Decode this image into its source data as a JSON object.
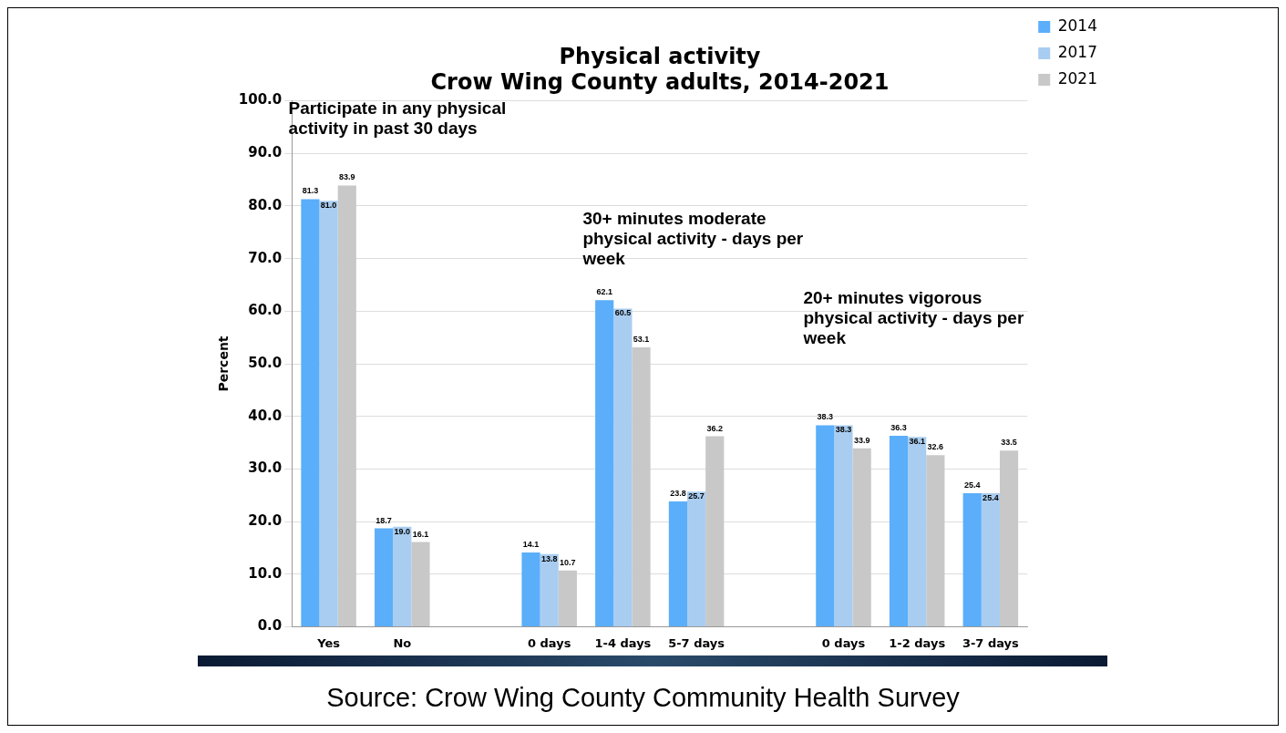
{
  "chart_data": {
    "type": "bar",
    "title": "Physical activity\nCrow Wing County adults, 2014-2021",
    "ylabel": "Percent",
    "categories": [
      "Yes",
      "No",
      null,
      "0 days",
      "1-4 days",
      "5-7 days",
      null,
      "0 days",
      "1-2 days",
      "3-7 days"
    ],
    "series": [
      {
        "name": "2014",
        "color": "#5aaefa",
        "values": [
          81.3,
          18.7,
          null,
          14.1,
          62.1,
          23.8,
          null,
          38.3,
          36.3,
          25.4
        ],
        "value_labels": [
          "81.3",
          "18.7",
          null,
          "14.1",
          "62.1",
          "23.8",
          null,
          "38.3",
          "36.3",
          "25.4"
        ]
      },
      {
        "name": "2017",
        "color": "#a9cdf0",
        "values": [
          81.0,
          19.0,
          null,
          13.8,
          60.5,
          25.7,
          null,
          38.3,
          36.1,
          25.4
        ],
        "value_labels": [
          "81.0",
          "19.0",
          null,
          "13.8",
          "60.5",
          "25.7",
          null,
          "38.3",
          "36.1",
          "25.4"
        ]
      },
      {
        "name": "2021",
        "color": "#c8c8c8",
        "values": [
          83.9,
          16.1,
          null,
          10.7,
          53.1,
          36.2,
          null,
          33.9,
          32.6,
          33.5
        ],
        "value_labels": [
          "83.9",
          "16.1",
          null,
          "10.7",
          "53.1",
          "36.2",
          null,
          "33.9",
          "32.6",
          "33.5"
        ]
      }
    ],
    "ylim": [
      0,
      100
    ],
    "yticks": [
      {
        "value": 0,
        "label": "0.0"
      },
      {
        "value": 10,
        "label": "10.0"
      },
      {
        "value": 20,
        "label": "20.0"
      },
      {
        "value": 30,
        "label": "30.0"
      },
      {
        "value": 40,
        "label": "40.0"
      },
      {
        "value": 50,
        "label": "50.0"
      },
      {
        "value": 60,
        "label": "60.0"
      },
      {
        "value": 70,
        "label": "70.0"
      },
      {
        "value": 80,
        "label": "80.0"
      },
      {
        "value": 90,
        "label": "90.0"
      },
      {
        "value": 100,
        "label": "100.0"
      }
    ],
    "grid": "y",
    "legend": "top right",
    "annotations": [
      "Participate in any physical activity in past 30 days",
      "30+ minutes moderate physical activity - days per week",
      "20+ minutes vigorous physical activity - days per week",
      "Source: Crow Wing County Community Health Survey"
    ]
  }
}
